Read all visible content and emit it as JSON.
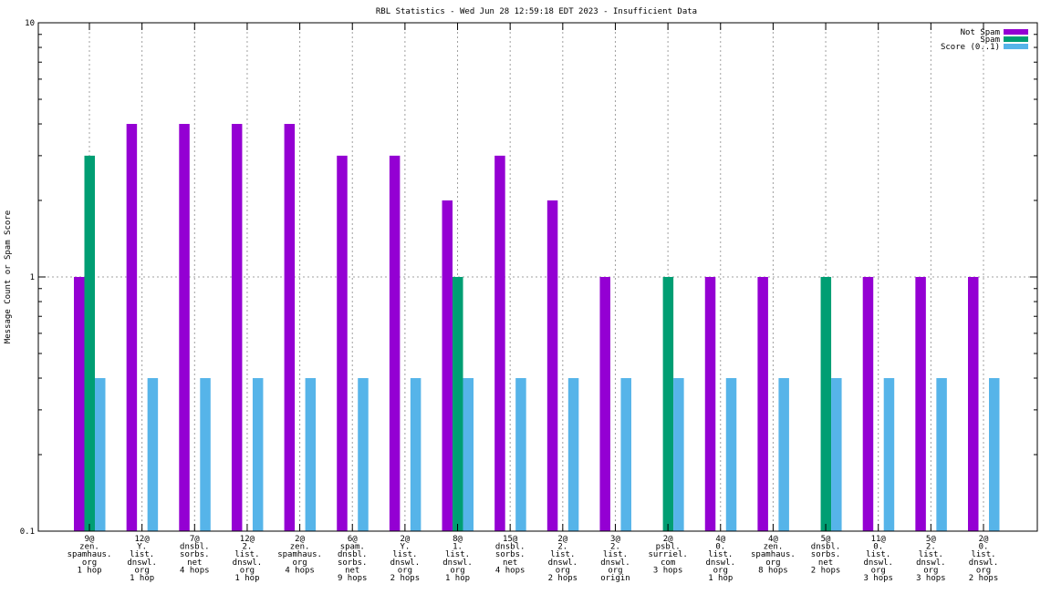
{
  "chart_data": {
    "type": "bar",
    "title": "RBL Statistics - Wed Jun 28 12:59:18 EDT 2023 - Insufficient Data",
    "xlabel": "",
    "ylabel": "Message Count or Spam Score",
    "yscale": "log",
    "ylim": [
      0.1,
      10
    ],
    "yticks": [
      "0.1",
      "1",
      "10"
    ],
    "grid": true,
    "legend_position": "top-right",
    "categories": [
      [
        "9@",
        "zen.",
        "spamhaus.",
        "org",
        "1 hop"
      ],
      [
        "12@",
        "Y.",
        "list.",
        "dnswl.",
        "org",
        "1 hop"
      ],
      [
        "7@",
        "dnsbl.",
        "sorbs.",
        "net",
        "4 hops"
      ],
      [
        "12@",
        "2.",
        "list.",
        "dnswl.",
        "org",
        "1 hop"
      ],
      [
        "2@",
        "zen.",
        "spamhaus.",
        "org",
        "4 hops"
      ],
      [
        "6@",
        "spam.",
        "dnsbl.",
        "sorbs.",
        "net",
        "9 hops"
      ],
      [
        "2@",
        "Y.",
        "list.",
        "dnswl.",
        "org",
        "2 hops"
      ],
      [
        "8@",
        "1.",
        "list.",
        "dnswl.",
        "org",
        "1 hop"
      ],
      [
        "15@",
        "dnsbl.",
        "sorbs.",
        "net",
        "4 hops"
      ],
      [
        "2@",
        "2.",
        "list.",
        "dnswl.",
        "org",
        "2 hops"
      ],
      [
        "3@",
        "2.",
        "list.",
        "dnswl.",
        "org",
        "origin"
      ],
      [
        "2@",
        "psbl.",
        "surriel.",
        "com",
        "3 hops"
      ],
      [
        "4@",
        "0.",
        "list.",
        "dnswl.",
        "org",
        "1 hop"
      ],
      [
        "4@",
        "zen.",
        "spamhaus.",
        "org",
        "8 hops"
      ],
      [
        "5@",
        "dnsbl.",
        "sorbs.",
        "net",
        "2 hops"
      ],
      [
        "11@",
        "0.",
        "list.",
        "dnswl.",
        "org",
        "3 hops"
      ],
      [
        "5@",
        "2.",
        "list.",
        "dnswl.",
        "org",
        "3 hops"
      ],
      [
        "2@",
        "0.",
        "list.",
        "dnswl.",
        "org",
        "2 hops"
      ]
    ],
    "series": [
      {
        "name": "Not Spam",
        "color": "#9400d3",
        "values": [
          1,
          4,
          4,
          4,
          4,
          3,
          3,
          2,
          3,
          2,
          1,
          0,
          1,
          1,
          0,
          1,
          1,
          1
        ]
      },
      {
        "name": "Spam",
        "color": "#009e73",
        "values": [
          3,
          0,
          0,
          0,
          0,
          0,
          0,
          1,
          0,
          0,
          0,
          1,
          0,
          0,
          1,
          0,
          0,
          0
        ]
      },
      {
        "name": "Score (0..1)",
        "color": "#56b4e9",
        "values": [
          0.4,
          0.4,
          0.4,
          0.4,
          0.4,
          0.4,
          0.4,
          0.4,
          0.4,
          0.4,
          0.4,
          0.4,
          0.4,
          0.4,
          0.4,
          0.4,
          0.4,
          0.4
        ]
      }
    ]
  }
}
